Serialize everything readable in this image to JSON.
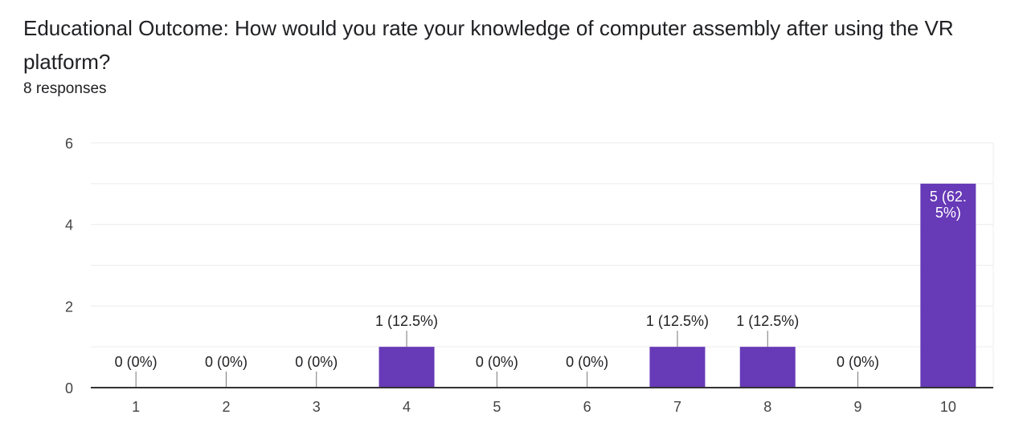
{
  "header": {
    "title": "Educational Outcome: How would you rate your knowledge of computer assembly after using the VR platform?",
    "responses": "8 responses"
  },
  "colors": {
    "bar": "#673ab7",
    "grid": "#ececec",
    "axis": "#333333"
  },
  "chart_data": {
    "type": "bar",
    "title": "Educational Outcome: How would you rate your knowledge of computer assembly after using the VR platform?",
    "categories": [
      "1",
      "2",
      "3",
      "4",
      "5",
      "6",
      "7",
      "8",
      "9",
      "10"
    ],
    "values": [
      0,
      0,
      0,
      1,
      0,
      0,
      1,
      1,
      0,
      5
    ],
    "data_labels": [
      "0 (0%)",
      "0 (0%)",
      "0 (0%)",
      "1 (12.5%)",
      "0 (0%)",
      "0 (0%)",
      "1 (12.5%)",
      "1 (12.5%)",
      "0 (0%)",
      "5 (62.5%)"
    ],
    "yticks": [
      0,
      2,
      4,
      6
    ],
    "ylim": [
      0,
      6
    ],
    "xlabel": "",
    "ylabel": "",
    "grid": true,
    "legend": "none"
  }
}
